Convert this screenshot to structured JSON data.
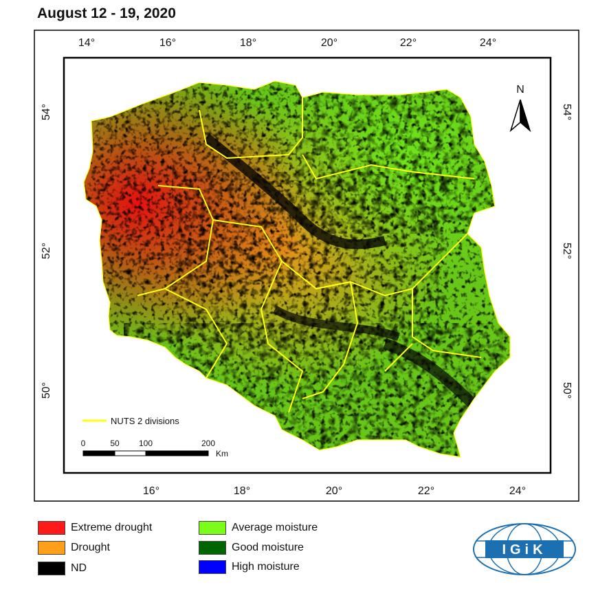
{
  "title": "August 12 - 19, 2020",
  "map": {
    "country": "Poland",
    "top_lon_ticks": [
      "14°",
      "16°",
      "18°",
      "20°",
      "22°",
      "24°"
    ],
    "bottom_lon_ticks": [
      "16°",
      "18°",
      "20°",
      "22°",
      "24°"
    ],
    "lat_ticks": [
      "54°",
      "52°",
      "50°"
    ],
    "north_label": "N",
    "nuts_label": "NUTS 2 divisions",
    "scale": {
      "ticks": [
        "0",
        "50",
        "100",
        "200"
      ],
      "unit": "Km"
    }
  },
  "legend": [
    {
      "label": "Extreme drought",
      "color": "#ff1a1a"
    },
    {
      "label": "Drought",
      "color": "#ff9f1a"
    },
    {
      "label": "ND",
      "color": "#000000"
    },
    {
      "label": "Average moisture",
      "color": "#7cfc1a"
    },
    {
      "label": "Good moisture",
      "color": "#006400"
    },
    {
      "label": "High moisture",
      "color": "#0000ff"
    }
  ],
  "logo": {
    "text": "IGiK",
    "color": "#1c6fb0"
  }
}
